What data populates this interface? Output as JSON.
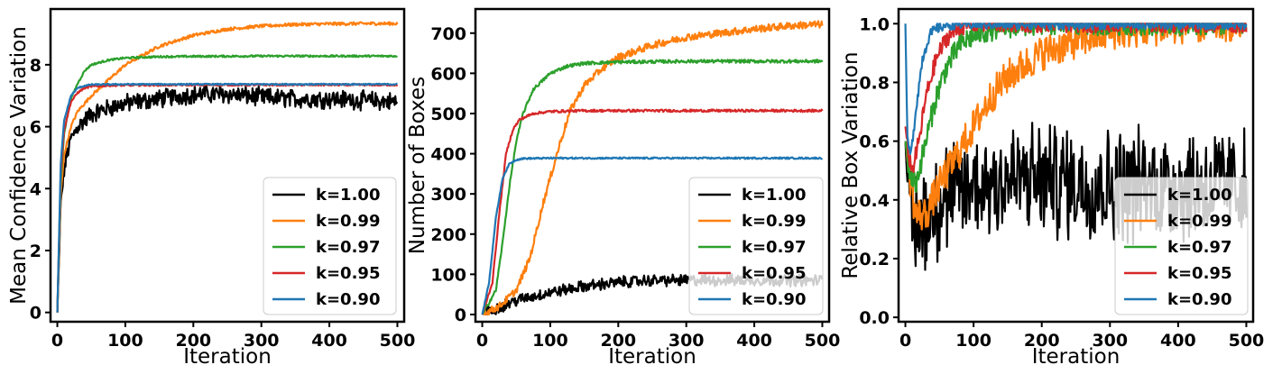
{
  "chart_data": [
    {
      "type": "line",
      "title": "",
      "xlabel": "Iteration",
      "ylabel": "Mean Confidence Variation",
      "xlim": [
        -10,
        510
      ],
      "ylim": [
        -0.3,
        9.8
      ],
      "xticks": [
        0,
        100,
        200,
        300,
        400,
        500
      ],
      "yticks": [
        0,
        2,
        4,
        6,
        8
      ],
      "grid": false,
      "legend_position": "lower-right",
      "series": [
        {
          "name": "k=1.00",
          "color": "#000000",
          "noise": 0.25,
          "points": [
            [
              0,
              0
            ],
            [
              5,
              3.5
            ],
            [
              10,
              4.6
            ],
            [
              15,
              5.2
            ],
            [
              20,
              5.6
            ],
            [
              30,
              6.0
            ],
            [
              50,
              6.4
            ],
            [
              75,
              6.6
            ],
            [
              100,
              6.75
            ],
            [
              150,
              6.9
            ],
            [
              200,
              7.05
            ],
            [
              250,
              7.05
            ],
            [
              300,
              6.95
            ],
            [
              350,
              6.9
            ],
            [
              400,
              6.9
            ],
            [
              450,
              6.85
            ],
            [
              500,
              6.8
            ]
          ]
        },
        {
          "name": "k=0.99",
          "color": "#ff7f0e",
          "noise": 0.05,
          "points": [
            [
              0,
              0
            ],
            [
              5,
              3.8
            ],
            [
              10,
              5.1
            ],
            [
              20,
              6.0
            ],
            [
              30,
              6.5
            ],
            [
              50,
              7.0
            ],
            [
              75,
              7.5
            ],
            [
              100,
              8.0
            ],
            [
              150,
              8.6
            ],
            [
              200,
              8.95
            ],
            [
              250,
              9.15
            ],
            [
              300,
              9.25
            ],
            [
              350,
              9.3
            ],
            [
              400,
              9.32
            ],
            [
              450,
              9.33
            ],
            [
              500,
              9.33
            ]
          ]
        },
        {
          "name": "k=0.97",
          "color": "#2ca02c",
          "noise": 0.03,
          "points": [
            [
              0,
              0
            ],
            [
              5,
              4.2
            ],
            [
              10,
              5.8
            ],
            [
              20,
              6.9
            ],
            [
              30,
              7.4
            ],
            [
              40,
              7.8
            ],
            [
              50,
              8.0
            ],
            [
              75,
              8.15
            ],
            [
              100,
              8.22
            ],
            [
              150,
              8.26
            ],
            [
              200,
              8.27
            ],
            [
              300,
              8.28
            ],
            [
              500,
              8.28
            ]
          ]
        },
        {
          "name": "k=0.95",
          "color": "#d62728",
          "noise": 0.03,
          "points": [
            [
              0,
              0
            ],
            [
              5,
              4.5
            ],
            [
              10,
              5.9
            ],
            [
              20,
              6.8
            ],
            [
              30,
              7.1
            ],
            [
              40,
              7.25
            ],
            [
              50,
              7.3
            ],
            [
              75,
              7.33
            ],
            [
              100,
              7.34
            ],
            [
              200,
              7.35
            ],
            [
              500,
              7.35
            ]
          ]
        },
        {
          "name": "k=0.90",
          "color": "#1f77b4",
          "noise": 0.02,
          "points": [
            [
              0,
              0
            ],
            [
              5,
              4.8
            ],
            [
              10,
              6.2
            ],
            [
              20,
              7.0
            ],
            [
              30,
              7.25
            ],
            [
              40,
              7.32
            ],
            [
              50,
              7.36
            ],
            [
              100,
              7.37
            ],
            [
              500,
              7.37
            ]
          ]
        }
      ]
    },
    {
      "type": "line",
      "title": "",
      "xlabel": "Iteration",
      "ylabel": "Number of Boxes",
      "xlim": [
        -10,
        510
      ],
      "ylim": [
        -18,
        760
      ],
      "xticks": [
        0,
        100,
        200,
        300,
        400,
        500
      ],
      "yticks": [
        0,
        100,
        200,
        300,
        400,
        500,
        600,
        700
      ],
      "grid": false,
      "legend_position": "lower-right",
      "series": [
        {
          "name": "k=1.00",
          "color": "#000000",
          "noise": 12,
          "points": [
            [
              0,
              0
            ],
            [
              20,
              15
            ],
            [
              50,
              35
            ],
            [
              100,
              55
            ],
            [
              150,
              70
            ],
            [
              200,
              80
            ],
            [
              250,
              85
            ],
            [
              300,
              85
            ],
            [
              350,
              85
            ],
            [
              400,
              85
            ],
            [
              450,
              85
            ],
            [
              500,
              85
            ]
          ]
        },
        {
          "name": "k=0.99",
          "color": "#ff7f0e",
          "noise": 9,
          "points": [
            [
              0,
              0
            ],
            [
              25,
              20
            ],
            [
              50,
              60
            ],
            [
              70,
              140
            ],
            [
              90,
              280
            ],
            [
              100,
              340
            ],
            [
              115,
              430
            ],
            [
              130,
              510
            ],
            [
              150,
              570
            ],
            [
              175,
              610
            ],
            [
              200,
              640
            ],
            [
              250,
              670
            ],
            [
              300,
              690
            ],
            [
              350,
              700
            ],
            [
              400,
              710
            ],
            [
              450,
              718
            ],
            [
              500,
              722
            ]
          ]
        },
        {
          "name": "k=0.97",
          "color": "#2ca02c",
          "noise": 4,
          "points": [
            [
              0,
              0
            ],
            [
              20,
              60
            ],
            [
              30,
              180
            ],
            [
              40,
              320
            ],
            [
              50,
              430
            ],
            [
              60,
              500
            ],
            [
              75,
              560
            ],
            [
              100,
              600
            ],
            [
              125,
              618
            ],
            [
              150,
              625
            ],
            [
              200,
              628
            ],
            [
              300,
              630
            ],
            [
              500,
              630
            ]
          ]
        },
        {
          "name": "k=0.95",
          "color": "#d62728",
          "noise": 3,
          "points": [
            [
              0,
              0
            ],
            [
              15,
              80
            ],
            [
              25,
              250
            ],
            [
              35,
              400
            ],
            [
              45,
              460
            ],
            [
              55,
              485
            ],
            [
              75,
              500
            ],
            [
              100,
              505
            ],
            [
              150,
              507
            ],
            [
              500,
              507
            ]
          ]
        },
        {
          "name": "k=0.90",
          "color": "#1f77b4",
          "noise": 2,
          "points": [
            [
              0,
              0
            ],
            [
              10,
              80
            ],
            [
              20,
              240
            ],
            [
              30,
              340
            ],
            [
              40,
              375
            ],
            [
              50,
              385
            ],
            [
              60,
              388
            ],
            [
              100,
              389
            ],
            [
              500,
              389
            ]
          ]
        }
      ]
    },
    {
      "type": "line",
      "title": "",
      "xlabel": "Iteration",
      "ylabel": "Relative Box Variation",
      "xlim": [
        -10,
        510
      ],
      "ylim": [
        -0.015,
        1.05
      ],
      "xticks": [
        0,
        100,
        200,
        300,
        400,
        500
      ],
      "yticks": [
        0.0,
        0.2,
        0.4,
        0.6,
        0.8,
        1.0
      ],
      "grid": false,
      "legend_position": "lower-right",
      "series": [
        {
          "name": "k=1.00",
          "color": "#000000",
          "noise": 0.16,
          "points": [
            [
              0,
              0.6
            ],
            [
              5,
              0.35
            ],
            [
              15,
              0.3
            ],
            [
              30,
              0.35
            ],
            [
              50,
              0.4
            ],
            [
              75,
              0.42
            ],
            [
              100,
              0.45
            ],
            [
              150,
              0.47
            ],
            [
              200,
              0.47
            ],
            [
              250,
              0.46
            ],
            [
              300,
              0.45
            ],
            [
              350,
              0.45
            ],
            [
              400,
              0.45
            ],
            [
              450,
              0.45
            ],
            [
              500,
              0.45
            ]
          ]
        },
        {
          "name": "k=0.99",
          "color": "#ff7f0e",
          "noise": 0.06,
          "points": [
            [
              0,
              0.6
            ],
            [
              5,
              0.5
            ],
            [
              15,
              0.35
            ],
            [
              30,
              0.35
            ],
            [
              50,
              0.45
            ],
            [
              75,
              0.55
            ],
            [
              100,
              0.65
            ],
            [
              125,
              0.75
            ],
            [
              150,
              0.82
            ],
            [
              200,
              0.9
            ],
            [
              250,
              0.94
            ],
            [
              300,
              0.97
            ],
            [
              350,
              0.98
            ],
            [
              400,
              0.99
            ],
            [
              450,
              0.995
            ],
            [
              500,
              1.0
            ]
          ]
        },
        {
          "name": "k=0.97",
          "color": "#2ca02c",
          "noise": 0.04,
          "points": [
            [
              0,
              0.6
            ],
            [
              5,
              0.5
            ],
            [
              15,
              0.45
            ],
            [
              30,
              0.6
            ],
            [
              45,
              0.75
            ],
            [
              60,
              0.85
            ],
            [
              80,
              0.93
            ],
            [
              100,
              0.96
            ],
            [
              125,
              0.98
            ],
            [
              150,
              0.99
            ],
            [
              200,
              1.0
            ],
            [
              500,
              1.0
            ]
          ]
        },
        {
          "name": "k=0.95",
          "color": "#d62728",
          "noise": 0.03,
          "points": [
            [
              0,
              0.65
            ],
            [
              5,
              0.55
            ],
            [
              10,
              0.5
            ],
            [
              20,
              0.6
            ],
            [
              30,
              0.75
            ],
            [
              45,
              0.88
            ],
            [
              60,
              0.95
            ],
            [
              80,
              0.99
            ],
            [
              100,
              1.0
            ],
            [
              500,
              1.0
            ]
          ]
        },
        {
          "name": "k=0.90",
          "color": "#1f77b4",
          "noise": 0.02,
          "points": [
            [
              0,
              1.0
            ],
            [
              3,
              0.6
            ],
            [
              8,
              0.55
            ],
            [
              15,
              0.7
            ],
            [
              25,
              0.88
            ],
            [
              35,
              0.96
            ],
            [
              50,
              0.99
            ],
            [
              70,
              1.0
            ],
            [
              500,
              1.0
            ]
          ]
        }
      ]
    }
  ]
}
